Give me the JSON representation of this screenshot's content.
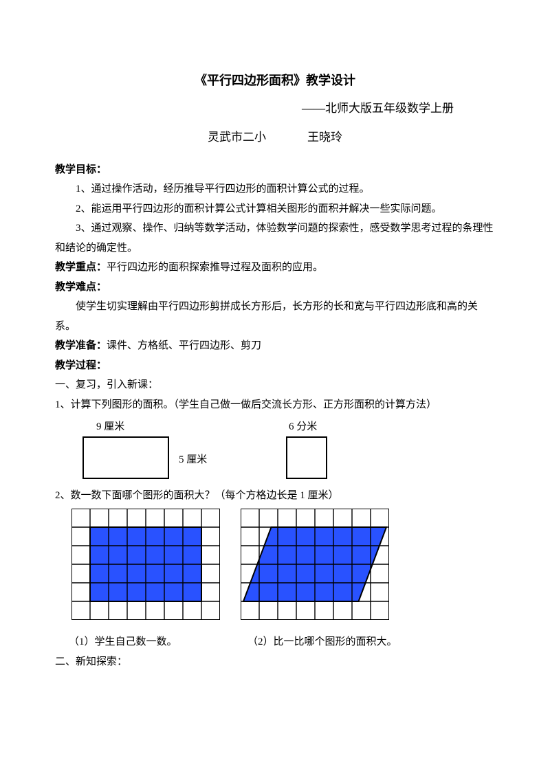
{
  "title": "《平行四边形面积》教学设计",
  "subtitle": "——北师大版五年级数学上册",
  "school": "灵武市二小",
  "teacher": "王晓玲",
  "labels": {
    "goals": "教学目标：",
    "keypoint": "教学重点：",
    "difficulty": "教学难点：",
    "prep": "教学准备：",
    "process": "教学过程："
  },
  "goals": {
    "g1": "1、通过操作活动，经历推导平行四边形的面积计算公式的过程。",
    "g2": "2、能运用平行四边形的面积计算公式计算相关图形的面积并解决一些实际问题。",
    "g3": "3、通过观察、操作、归纳等数学活动，体验数学问题的探索性，感受数学思考过程的条理性和结论的确定性。"
  },
  "keypoint_text": "平行四边形的面积探索推导过程及面积的应用。",
  "difficulty_text": "使学生切实理解由平行四边形剪拼成长方形后，长方形的长和宽与平行四边形底和高的关系。",
  "prep_text": "课件、方格纸、平行四边形、剪刀",
  "process": {
    "s1": "一、复习，引入新课：",
    "q1": "1、计算下列图形的面积。（学生自己做一做后交流长方形、正方形面积的计算方法）",
    "rect1_w_label": "9 厘米",
    "rect1_h_label": "5 厘米",
    "rect2_label": "6 分米",
    "q2": "2、数一数下面哪个图形的面积大？（每个方格边长是 1 厘米）",
    "cap1": "（1）学生自己数一数。",
    "cap2": "（2）比一比哪个图形的面积大。",
    "s2": "二、新知探索："
  },
  "fig1": {
    "rect1_w": 126,
    "rect1_h": 62,
    "rect2_w": 60,
    "rect2_h": 62
  },
  "fig2": {
    "cell": 27,
    "cols": 8,
    "rows": 6,
    "fill_color": "#2952ff",
    "stroke": "#000000",
    "rect_inset_x": 1,
    "rect_inset_y": 1,
    "rect_w": 6,
    "rect_h": 4,
    "para_shear": 1.5
  }
}
